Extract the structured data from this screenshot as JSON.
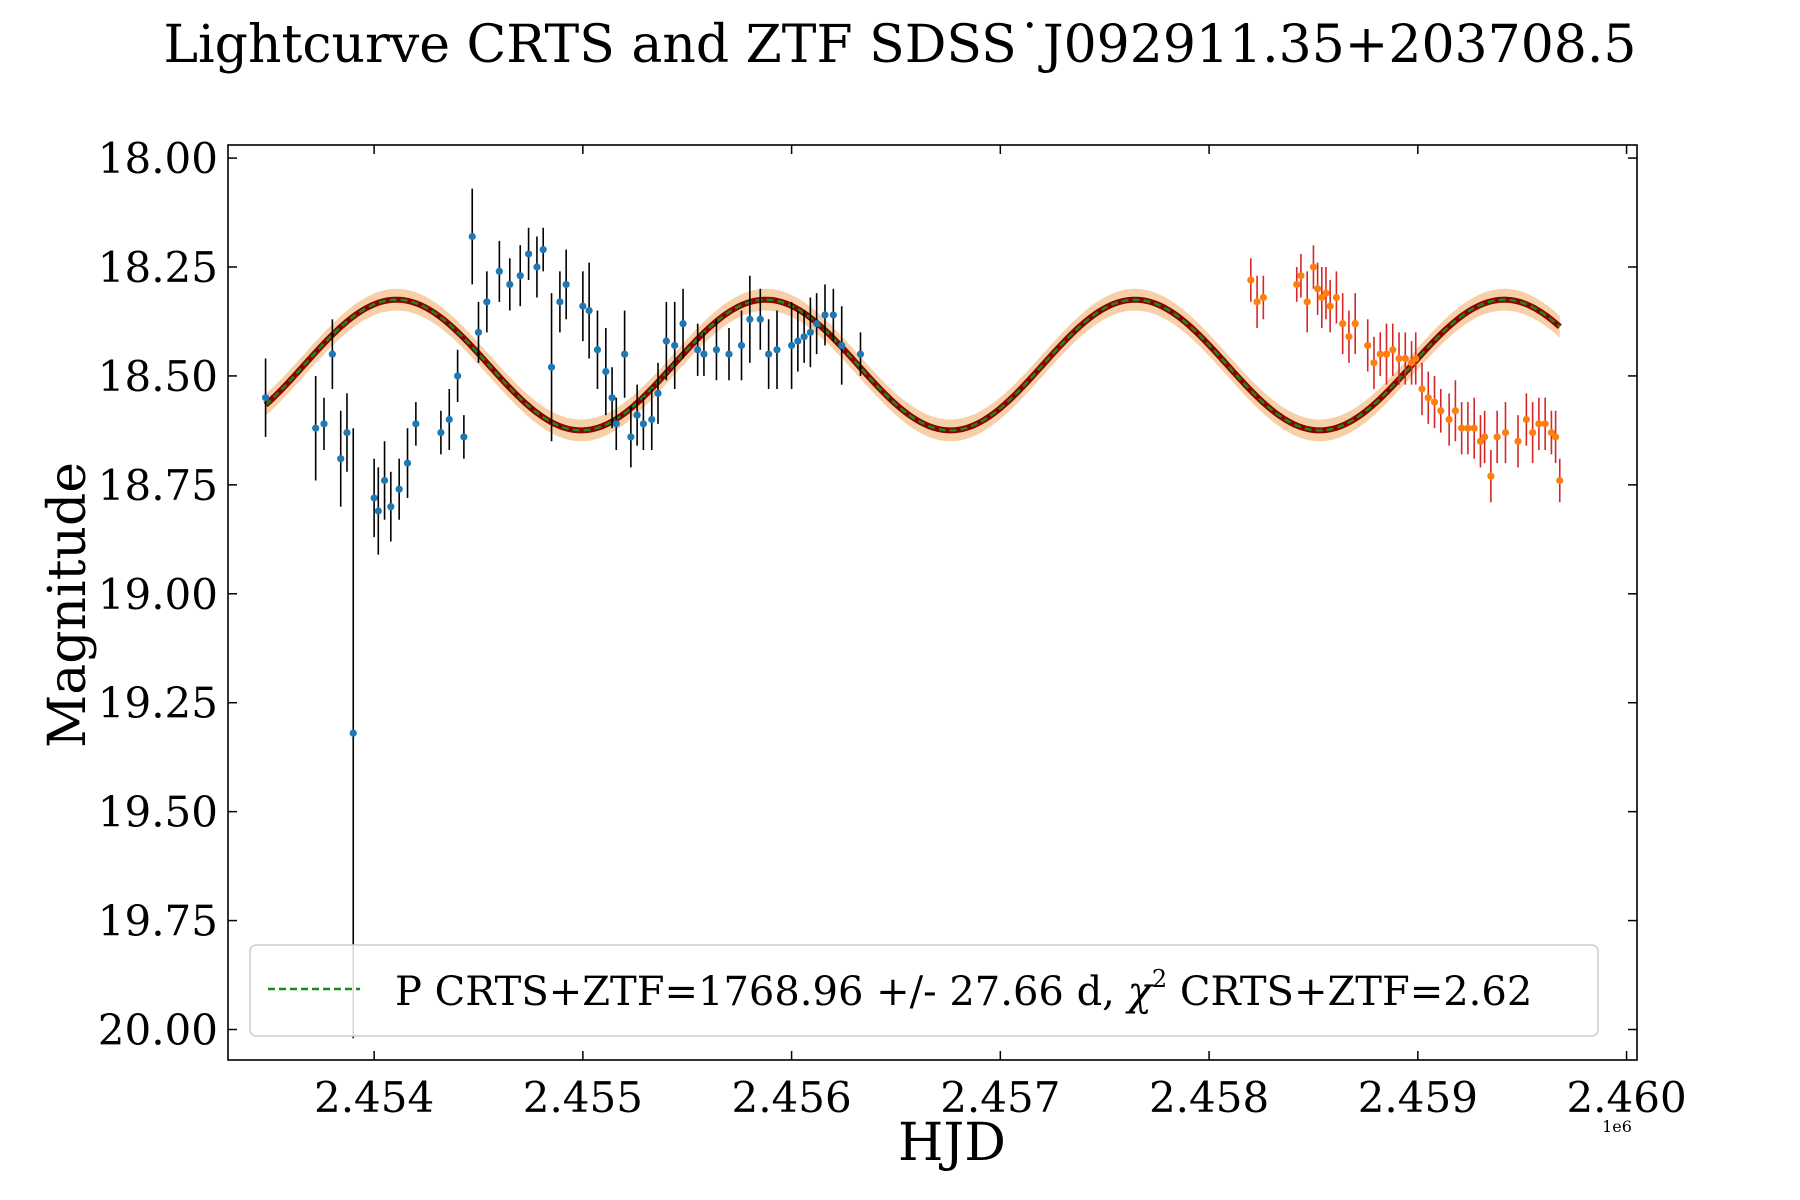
{
  "chart_data": {
    "type": "scatter",
    "title": "Lightcurve CRTS and ZTF SDSS˙J092911.35+203708.5",
    "xlabel": "HJD",
    "ylabel": "Magnitude",
    "x_offset_label": "1e6",
    "xlim": [
      2453300,
      2460050
    ],
    "ylim": [
      20.07,
      17.97
    ],
    "y_inverted": true,
    "x_ticks": [
      2454000,
      2455000,
      2456000,
      2457000,
      2458000,
      2459000,
      2460000
    ],
    "x_tick_labels": [
      "2.454",
      "2.455",
      "2.456",
      "2.457",
      "2.458",
      "2.459",
      "2.460"
    ],
    "y_ticks": [
      18.0,
      18.25,
      18.5,
      18.75,
      19.0,
      19.25,
      19.5,
      19.75,
      20.0
    ],
    "y_tick_labels": [
      "18.00",
      "18.25",
      "18.50",
      "18.75",
      "19.00",
      "19.25",
      "19.50",
      "19.75",
      "20.00"
    ],
    "legend_location": "lower-right",
    "legend": [
      {
        "label": "P CRTS+ZTF=1768.96 +/- 27.66 d, χ² CRTS+ZTF=2.62",
        "label_main": "P CRTS+ZTF=1768.96 +/- 27.66 d, ",
        "label_chi": "χ",
        "label_sup": "2",
        "label_tail": " CRTS+ZTF=2.62",
        "style": "dashed",
        "color": "#1a8a1a"
      }
    ],
    "model": {
      "name": "sinusoid fit",
      "period_days": 1768.96,
      "period_err_days": 27.66,
      "chi2": 2.62,
      "mean_mag": 18.475,
      "amplitude_mag": 0.15,
      "peak_hjd": 2457645,
      "x_start": 2453480,
      "x_end": 2459680,
      "band_halfwidth_mag": 0.025,
      "line_color": "#1a8a1a",
      "outer_color": "#8b0000",
      "band_color": "#f5c08a"
    },
    "series": [
      {
        "name": "CRTS",
        "marker_color": "#1f77b4",
        "errorbar_color": "#000000",
        "x": [
          2453480,
          2453720,
          2453760,
          2453800,
          2453840,
          2453870,
          2453900,
          2454000,
          2454020,
          2454050,
          2454080,
          2454120,
          2454160,
          2454200,
          2454320,
          2454360,
          2454400,
          2454430,
          2454470,
          2454500,
          2454540,
          2454600,
          2454650,
          2454700,
          2454740,
          2454780,
          2454810,
          2454850,
          2454890,
          2454920,
          2455000,
          2455030,
          2455070,
          2455110,
          2455140,
          2455160,
          2455200,
          2455230,
          2455260,
          2455290,
          2455330,
          2455360,
          2455400,
          2455440,
          2455480,
          2455550,
          2455580,
          2455640,
          2455700,
          2455760,
          2455800,
          2455850,
          2455890,
          2455930,
          2456000,
          2456030,
          2456060,
          2456090,
          2456120,
          2456160,
          2456200,
          2456240,
          2456330
        ],
        "y": [
          18.55,
          18.62,
          18.61,
          18.45,
          18.69,
          18.63,
          19.32,
          18.78,
          18.81,
          18.74,
          18.8,
          18.76,
          18.7,
          18.61,
          18.63,
          18.6,
          18.5,
          18.64,
          18.18,
          18.4,
          18.33,
          18.26,
          18.29,
          18.27,
          18.22,
          18.25,
          18.21,
          18.48,
          18.33,
          18.29,
          18.34,
          18.35,
          18.44,
          18.49,
          18.55,
          18.61,
          18.45,
          18.64,
          18.59,
          18.61,
          18.6,
          18.54,
          18.42,
          18.43,
          18.38,
          18.44,
          18.45,
          18.44,
          18.45,
          18.43,
          18.37,
          18.37,
          18.45,
          18.44,
          18.43,
          18.42,
          18.41,
          18.4,
          18.38,
          18.36,
          18.36,
          18.43,
          18.45
        ],
        "err": [
          0.09,
          0.12,
          0.06,
          0.08,
          0.11,
          0.09,
          0.7,
          0.09,
          0.1,
          0.09,
          0.08,
          0.07,
          0.08,
          0.05,
          0.05,
          0.07,
          0.06,
          0.05,
          0.11,
          0.07,
          0.07,
          0.07,
          0.06,
          0.07,
          0.06,
          0.07,
          0.05,
          0.17,
          0.07,
          0.08,
          0.08,
          0.11,
          0.09,
          0.1,
          0.07,
          0.06,
          0.1,
          0.07,
          0.07,
          0.06,
          0.07,
          0.07,
          0.09,
          0.1,
          0.08,
          0.06,
          0.05,
          0.07,
          0.06,
          0.08,
          0.1,
          0.07,
          0.08,
          0.09,
          0.1,
          0.07,
          0.06,
          0.08,
          0.07,
          0.07,
          0.06,
          0.09,
          0.05
        ]
      },
      {
        "name": "ZTF",
        "marker_color": "#ff7f0e",
        "errorbar_color": "#d62728",
        "x": [
          2458200,
          2458230,
          2458260,
          2458420,
          2458440,
          2458470,
          2458500,
          2458520,
          2458540,
          2458560,
          2458580,
          2458610,
          2458640,
          2458670,
          2458700,
          2458760,
          2458790,
          2458820,
          2458850,
          2458880,
          2458910,
          2458940,
          2458970,
          2458990,
          2459020,
          2459050,
          2459080,
          2459110,
          2459150,
          2459180,
          2459210,
          2459240,
          2459270,
          2459300,
          2459320,
          2459350,
          2459380,
          2459420,
          2459480,
          2459520,
          2459550,
          2459580,
          2459610,
          2459640,
          2459660,
          2459680
        ],
        "y": [
          18.28,
          18.33,
          18.32,
          18.29,
          18.27,
          18.33,
          18.25,
          18.3,
          18.32,
          18.31,
          18.34,
          18.32,
          18.38,
          18.41,
          18.38,
          18.43,
          18.47,
          18.45,
          18.45,
          18.44,
          18.46,
          18.46,
          18.47,
          18.46,
          18.53,
          18.55,
          18.56,
          18.58,
          18.6,
          18.58,
          18.62,
          18.62,
          18.62,
          18.65,
          18.64,
          18.73,
          18.64,
          18.63,
          18.65,
          18.6,
          18.63,
          18.61,
          18.61,
          18.63,
          18.64,
          18.74
        ],
        "err": [
          0.05,
          0.06,
          0.05,
          0.04,
          0.05,
          0.07,
          0.05,
          0.06,
          0.07,
          0.06,
          0.06,
          0.06,
          0.07,
          0.06,
          0.07,
          0.06,
          0.06,
          0.05,
          0.07,
          0.06,
          0.06,
          0.06,
          0.05,
          0.06,
          0.06,
          0.06,
          0.06,
          0.05,
          0.06,
          0.07,
          0.06,
          0.06,
          0.07,
          0.06,
          0.06,
          0.06,
          0.06,
          0.07,
          0.06,
          0.06,
          0.07,
          0.06,
          0.06,
          0.05,
          0.06,
          0.05
        ]
      }
    ]
  }
}
